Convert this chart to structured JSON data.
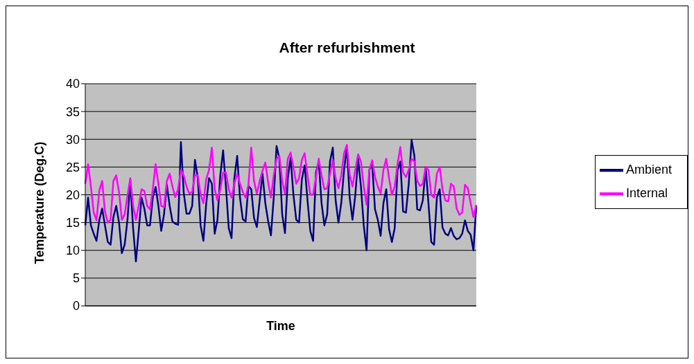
{
  "chart_data": {
    "type": "line",
    "title": "After refurbishment",
    "xlabel": "Time",
    "ylabel": "Temperature (Deg.C)",
    "categories": [
      null,
      null,
      null,
      null,
      null,
      null,
      null,
      null,
      null,
      null,
      null,
      null,
      null,
      null,
      null,
      null,
      null,
      null,
      null,
      null,
      null,
      null,
      null,
      null,
      null,
      null,
      null,
      null,
      null,
      null,
      null,
      null,
      null,
      null,
      null,
      null,
      null,
      null,
      null,
      null,
      null,
      null,
      null,
      null,
      null,
      null,
      null,
      null,
      null,
      null,
      null,
      null,
      null,
      null,
      null,
      null,
      null,
      null,
      null,
      null,
      null,
      null,
      null,
      null,
      null,
      null,
      null,
      null,
      null,
      null,
      null,
      null,
      null,
      null,
      null,
      null,
      null,
      null,
      null,
      null,
      null,
      null,
      null,
      null,
      null,
      null,
      null,
      null,
      null,
      null,
      null,
      null,
      null,
      null,
      null,
      null,
      null,
      null,
      null,
      null,
      null,
      null,
      null,
      null,
      null,
      null,
      null,
      null,
      null,
      null,
      null,
      null,
      null,
      null,
      null,
      null,
      null,
      null,
      null,
      null,
      null,
      null,
      null,
      null,
      null,
      null,
      null,
      null,
      null,
      null,
      null,
      null,
      null,
      null,
      null,
      null,
      null,
      null,
      null,
      null
    ],
    "series": [
      {
        "name": "Ambient",
        "color": "#000080",
        "values": [
          14.5,
          19.5,
          14.5,
          13,
          11.7,
          15.5,
          17.5,
          14.5,
          11.5,
          11,
          16,
          18,
          15,
          9.5,
          11,
          15.5,
          22.5,
          14,
          8,
          13.5,
          19.5,
          17.5,
          14.5,
          14.5,
          19.5,
          21.4,
          18,
          13.5,
          16.5,
          21.8,
          18,
          15.2,
          14.8,
          14.6,
          29.5,
          20.4,
          16.6,
          16.6,
          18,
          26.3,
          23,
          14.5,
          11.7,
          18.5,
          23,
          22,
          13,
          15.5,
          23.5,
          28,
          21.5,
          14,
          12.2,
          23,
          27,
          19.5,
          15.6,
          15.2,
          21.6,
          21,
          15.8,
          14.2,
          19,
          23.8,
          18.5,
          15.3,
          12.7,
          19.5,
          28.8,
          26.5,
          16.5,
          13.1,
          23,
          26.7,
          20,
          15.5,
          15,
          22.8,
          25.3,
          19,
          13.5,
          11.7,
          24,
          26,
          18.5,
          14.5,
          16.5,
          26,
          28.5,
          19,
          15,
          18.5,
          24.5,
          28.6,
          19.5,
          15.5,
          20,
          26.5,
          21.5,
          14.5,
          10,
          24.5,
          25.5,
          17.4,
          15.5,
          12.6,
          18.5,
          21,
          13.8,
          11.5,
          14,
          24.5,
          26,
          17,
          16.8,
          22,
          29.9,
          27,
          17.4,
          17.2,
          19,
          25,
          18.5,
          11.5,
          11,
          19.5,
          21,
          14.1,
          13,
          12.7,
          14,
          12.6,
          12,
          12.2,
          13,
          15.4,
          13.5,
          12.8,
          10,
          18
        ]
      },
      {
        "name": "Internal",
        "color": "#ff00ff",
        "values": [
          22,
          25.5,
          21.5,
          16.8,
          15.4,
          20.8,
          22.5,
          17,
          15,
          15.5,
          22.5,
          23.5,
          20.5,
          15.5,
          16.5,
          19.8,
          23,
          18,
          15.5,
          18,
          21,
          20.7,
          18,
          17.4,
          21,
          25.5,
          22,
          18,
          17.8,
          22.5,
          23.8,
          21.5,
          19.6,
          21,
          24.5,
          23.5,
          21.5,
          20.2,
          20.5,
          23.6,
          23.5,
          20,
          18.5,
          22.8,
          24.5,
          28.5,
          21,
          19,
          21,
          24,
          24,
          21,
          19.5,
          22,
          23.8,
          22,
          20.5,
          19.5,
          21.8,
          28.5,
          22.5,
          20.2,
          22.5,
          24.3,
          25.8,
          22.3,
          19.5,
          23.5,
          26.5,
          27,
          22.5,
          20.2,
          26.5,
          27.6,
          25,
          22,
          23,
          26.3,
          27.5,
          23.5,
          20,
          20,
          23.2,
          26.5,
          23.5,
          21,
          21.2,
          23.8,
          26.3,
          23,
          21.2,
          23.5,
          27.5,
          29,
          23.6,
          21.5,
          24.5,
          27.3,
          26,
          21.5,
          18.2,
          24.5,
          26.2,
          23.2,
          21.5,
          20.2,
          24.5,
          26.5,
          23,
          20,
          21.5,
          25.5,
          28.6,
          24,
          23.2,
          24.5,
          26.5,
          26,
          22.5,
          21.6,
          22,
          25,
          24.5,
          20,
          19.5,
          23.8,
          25,
          21,
          19,
          18.8,
          22,
          21.5,
          17.6,
          16.4,
          16.8,
          21.8,
          21.2,
          18.5,
          16,
          18.2
        ]
      }
    ],
    "ylim": [
      0,
      40
    ],
    "yticks": [
      0,
      5,
      10,
      15,
      20,
      25,
      30,
      35,
      40
    ],
    "grid": "y",
    "legend": "right",
    "marker": "none",
    "line_style": "solid"
  }
}
